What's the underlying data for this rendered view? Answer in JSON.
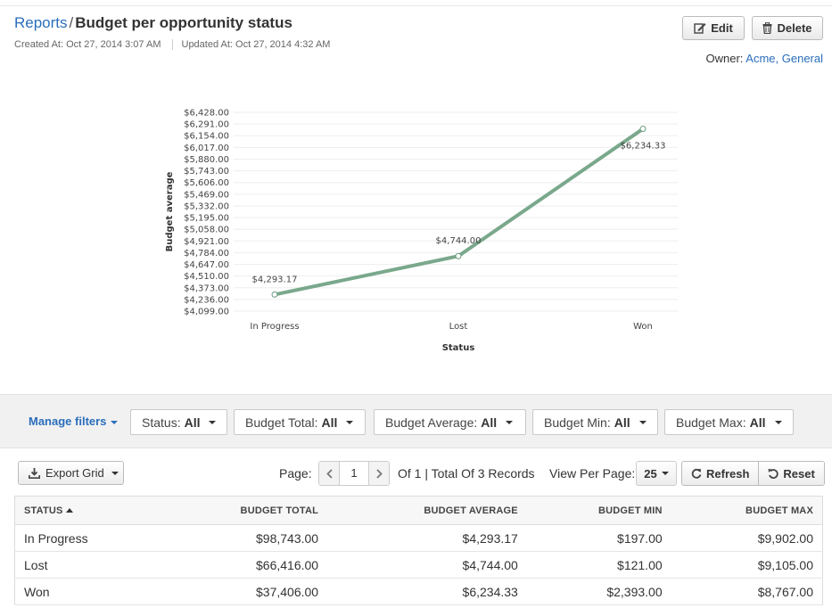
{
  "breadcrumb": {
    "root": "Reports",
    "separator": "/",
    "title": "Budget per opportunity status"
  },
  "meta": {
    "created": "Created At: Oct 27, 2014 3:07 AM",
    "updated": "Updated At: Oct 27, 2014 4:32 AM"
  },
  "actions": {
    "edit": "Edit",
    "delete": "Delete"
  },
  "owner": {
    "label": "Owner:",
    "value": "Acme, General"
  },
  "chart_data": {
    "type": "line",
    "categories": [
      "In Progress",
      "Lost",
      "Won"
    ],
    "values": [
      4293.17,
      4744.0,
      6234.33
    ],
    "data_labels": [
      "$4,293.17",
      "$4,744.00",
      "$6,234.33"
    ],
    "xlabel": "Status",
    "ylabel": "Budget average",
    "ylim": [
      4099,
      6428
    ],
    "yticks": [
      4099,
      4236,
      4373,
      4510,
      4647,
      4784,
      4921,
      5058,
      5195,
      5332,
      5469,
      5606,
      5743,
      5880,
      6017,
      6154,
      6291,
      6428
    ],
    "ytick_labels": [
      "$4,099.00",
      "$4,236.00",
      "$4,373.00",
      "$4,510.00",
      "$4,647.00",
      "$4,784.00",
      "$4,921.00",
      "$5,058.00",
      "$5,195.00",
      "$5,332.00",
      "$5,469.00",
      "$5,606.00",
      "$5,743.00",
      "$5,880.00",
      "$6,017.00",
      "$6,154.00",
      "$6,291.00",
      "$6,428.00"
    ],
    "grid": true,
    "line_color": "#7aa88c"
  },
  "filters": {
    "manage": "Manage filters",
    "items": [
      {
        "label": "Status:",
        "value": "All"
      },
      {
        "label": "Budget Total:",
        "value": "All"
      },
      {
        "label": "Budget Average:",
        "value": "All"
      },
      {
        "label": "Budget Min:",
        "value": "All"
      },
      {
        "label": "Budget Max:",
        "value": "All"
      }
    ]
  },
  "toolbar": {
    "export": "Export Grid",
    "page_label": "Page:",
    "page": "1",
    "records": "Of 1 | Total Of 3 Records",
    "view_per_page_label": "View Per Page:",
    "view_per_page": "25",
    "refresh": "Refresh",
    "reset": "Reset"
  },
  "table": {
    "headers": [
      "STATUS",
      "BUDGET TOTAL",
      "BUDGET AVERAGE",
      "BUDGET MIN",
      "BUDGET MAX"
    ],
    "rows": [
      [
        "In Progress",
        "$98,743.00",
        "$4,293.17",
        "$197.00",
        "$9,902.00"
      ],
      [
        "Lost",
        "$66,416.00",
        "$4,744.00",
        "$121.00",
        "$9,105.00"
      ],
      [
        "Won",
        "$37,406.00",
        "$6,234.33",
        "$2,393.00",
        "$8,767.00"
      ]
    ]
  },
  "colors": {
    "link": "#2a6ebb",
    "filterbar": "#f1f1f1"
  }
}
